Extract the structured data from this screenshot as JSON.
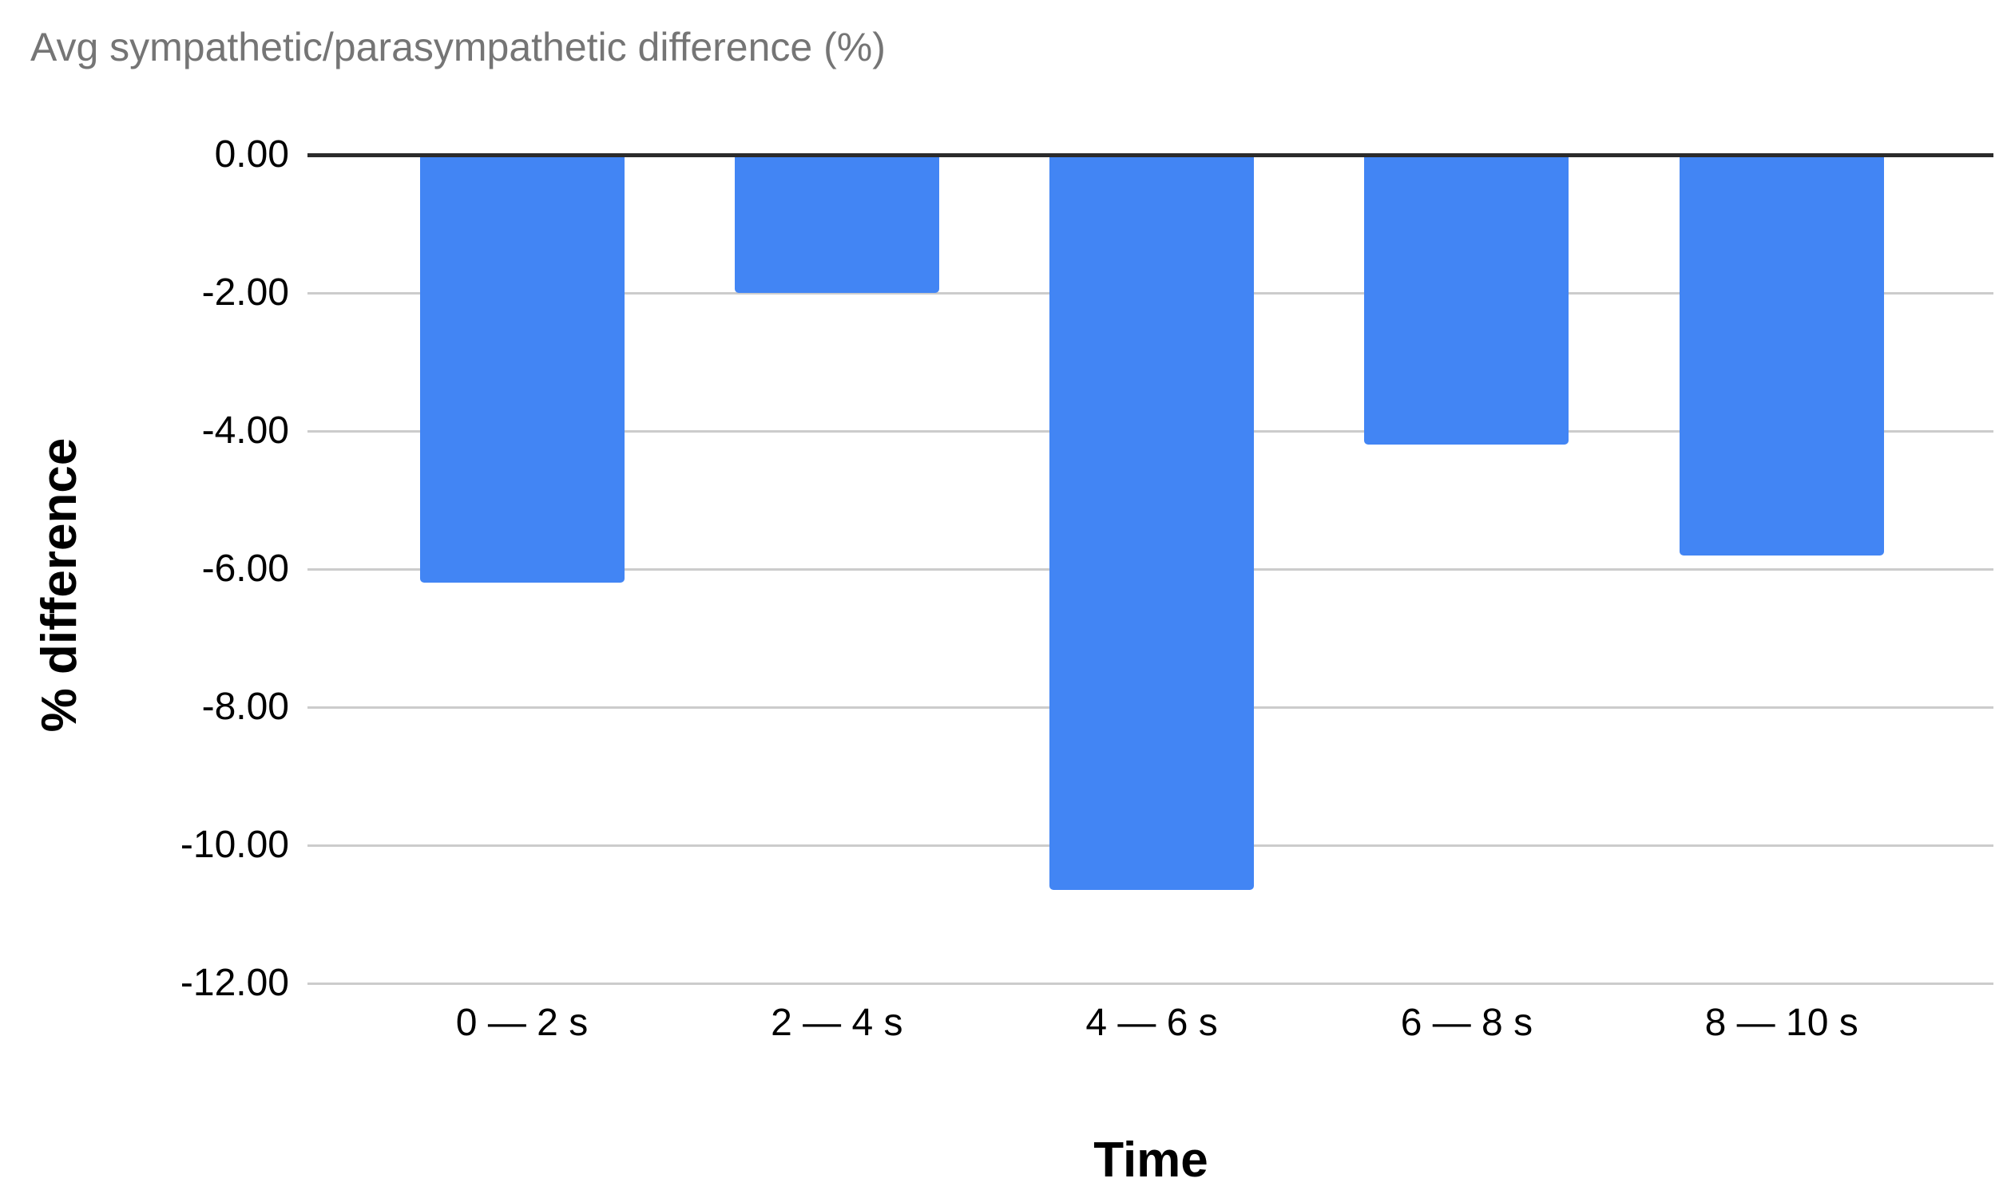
{
  "chart_data": {
    "type": "bar",
    "title": "Avg sympathetic/parasympathetic difference (%)",
    "xlabel": "Time",
    "ylabel": "% difference",
    "categories": [
      "0 — 2 s",
      "2 — 4 s",
      "4 — 6 s",
      "6 — 8 s",
      "8 — 10 s"
    ],
    "values": [
      -6.2,
      -2.0,
      -10.65,
      -4.2,
      -5.8
    ],
    "series_name": "Avg sympathetic/parasympathetic difference (%)",
    "ylim": [
      -12,
      0
    ],
    "yticks": [
      {
        "label": "0.00",
        "value": 0
      },
      {
        "label": "-2.00",
        "value": -2
      },
      {
        "label": "-4.00",
        "value": -4
      },
      {
        "label": "-6.00",
        "value": -6
      },
      {
        "label": "-8.00",
        "value": -8
      },
      {
        "label": "-10.00",
        "value": -10
      },
      {
        "label": "-12.00",
        "value": -12
      }
    ],
    "grid": true,
    "legend_position": "none"
  },
  "colors": {
    "bar": "#4285f4",
    "title_text": "#757575",
    "axis_text": "#000000",
    "gridline": "#cccccc",
    "zero_line": "#2b2b2b",
    "background": "#ffffff"
  }
}
